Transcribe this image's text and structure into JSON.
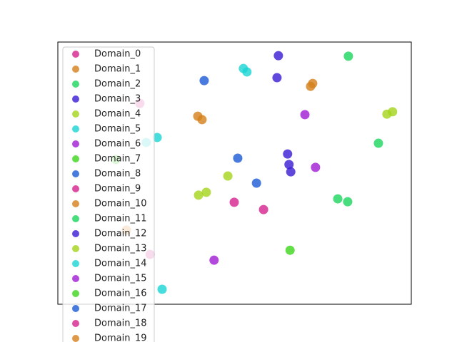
{
  "chart_data": {
    "type": "scatter",
    "legend": "upper left",
    "xlim": [
      0,
      100
    ],
    "ylim": [
      0,
      100
    ],
    "marker_alpha": 0.8,
    "series": [
      {
        "name": "Domain_0",
        "color": "#d4208c",
        "x": [
          23.2
        ],
        "y": [
          76.6
        ]
      },
      {
        "name": "Domain_1",
        "color": "#d4801a",
        "x": [
          40.8,
          39.6
        ],
        "y": [
          70.4,
          71.7
        ]
      },
      {
        "name": "Domain_2",
        "color": "#1ad45c",
        "x": [
          90.7,
          82.2
        ],
        "y": [
          61.4,
          94.6
        ]
      },
      {
        "name": "Domain_3",
        "color": "#3a1ad4",
        "x": [
          62.4,
          62.0
        ],
        "y": [
          94.8,
          86.4
        ]
      },
      {
        "name": "Domain_4",
        "color": "#a4d41a",
        "x": [
          48.1
        ],
        "y": [
          48.9
        ]
      },
      {
        "name": "Domain_5",
        "color": "#1ad4d4",
        "x": [
          52.5,
          53.5
        ],
        "y": [
          89.9,
          88.6
        ]
      },
      {
        "name": "Domain_6",
        "color": "#a01ad4",
        "x": [
          69.9
        ],
        "y": [
          72.3
        ]
      },
      {
        "name": "Domain_7",
        "color": "#3cd41a",
        "x": [
          16.4
        ],
        "y": [
          55.2
        ]
      },
      {
        "name": "Domain_8",
        "color": "#1a5ad4",
        "x": [
          41.4
        ],
        "y": [
          85.3
        ]
      },
      {
        "name": "Domain_9",
        "color": "#d4208c",
        "x": [
          49.9
        ],
        "y": [
          38.9
        ]
      },
      {
        "name": "Domain_10",
        "color": "#d4801a",
        "x": [
          72.1,
          71.5
        ],
        "y": [
          84.2,
          83.1
        ]
      },
      {
        "name": "Domain_11",
        "color": "#1ad45c",
        "x": [
          79.2,
          82.0
        ],
        "y": [
          40.2,
          39.1
        ]
      },
      {
        "name": "Domain_12",
        "color": "#3a1ad4",
        "x": [
          65.0,
          65.9,
          65.4
        ],
        "y": [
          57.3,
          50.5,
          53.3
        ]
      },
      {
        "name": "Domain_13",
        "color": "#a4d41a",
        "x": [
          42.0,
          39.8,
          93.1,
          94.7
        ],
        "y": [
          42.7,
          41.6,
          72.5,
          73.4
        ]
      },
      {
        "name": "Domain_14",
        "color": "#1ad4d4",
        "x": [
          28.1,
          25.0,
          29.5
        ],
        "y": [
          63.6,
          61.7,
          5.7
        ]
      },
      {
        "name": "Domain_15",
        "color": "#a01ad4",
        "x": [
          72.9,
          44.2
        ],
        "y": [
          52.2,
          16.8
        ]
      },
      {
        "name": "Domain_16",
        "color": "#3cd41a",
        "x": [
          65.7
        ],
        "y": [
          20.6
        ]
      },
      {
        "name": "Domain_17",
        "color": "#1a5ad4",
        "x": [
          50.9,
          56.2
        ],
        "y": [
          55.7,
          46.2
        ]
      },
      {
        "name": "Domain_18",
        "color": "#d4208c",
        "x": [
          58.2,
          26.1
        ],
        "y": [
          36.1,
          19.0
        ]
      },
      {
        "name": "Domain_19",
        "color": "#d4801a",
        "x": [
          19.4
        ],
        "y": [
          28.3
        ]
      }
    ]
  }
}
